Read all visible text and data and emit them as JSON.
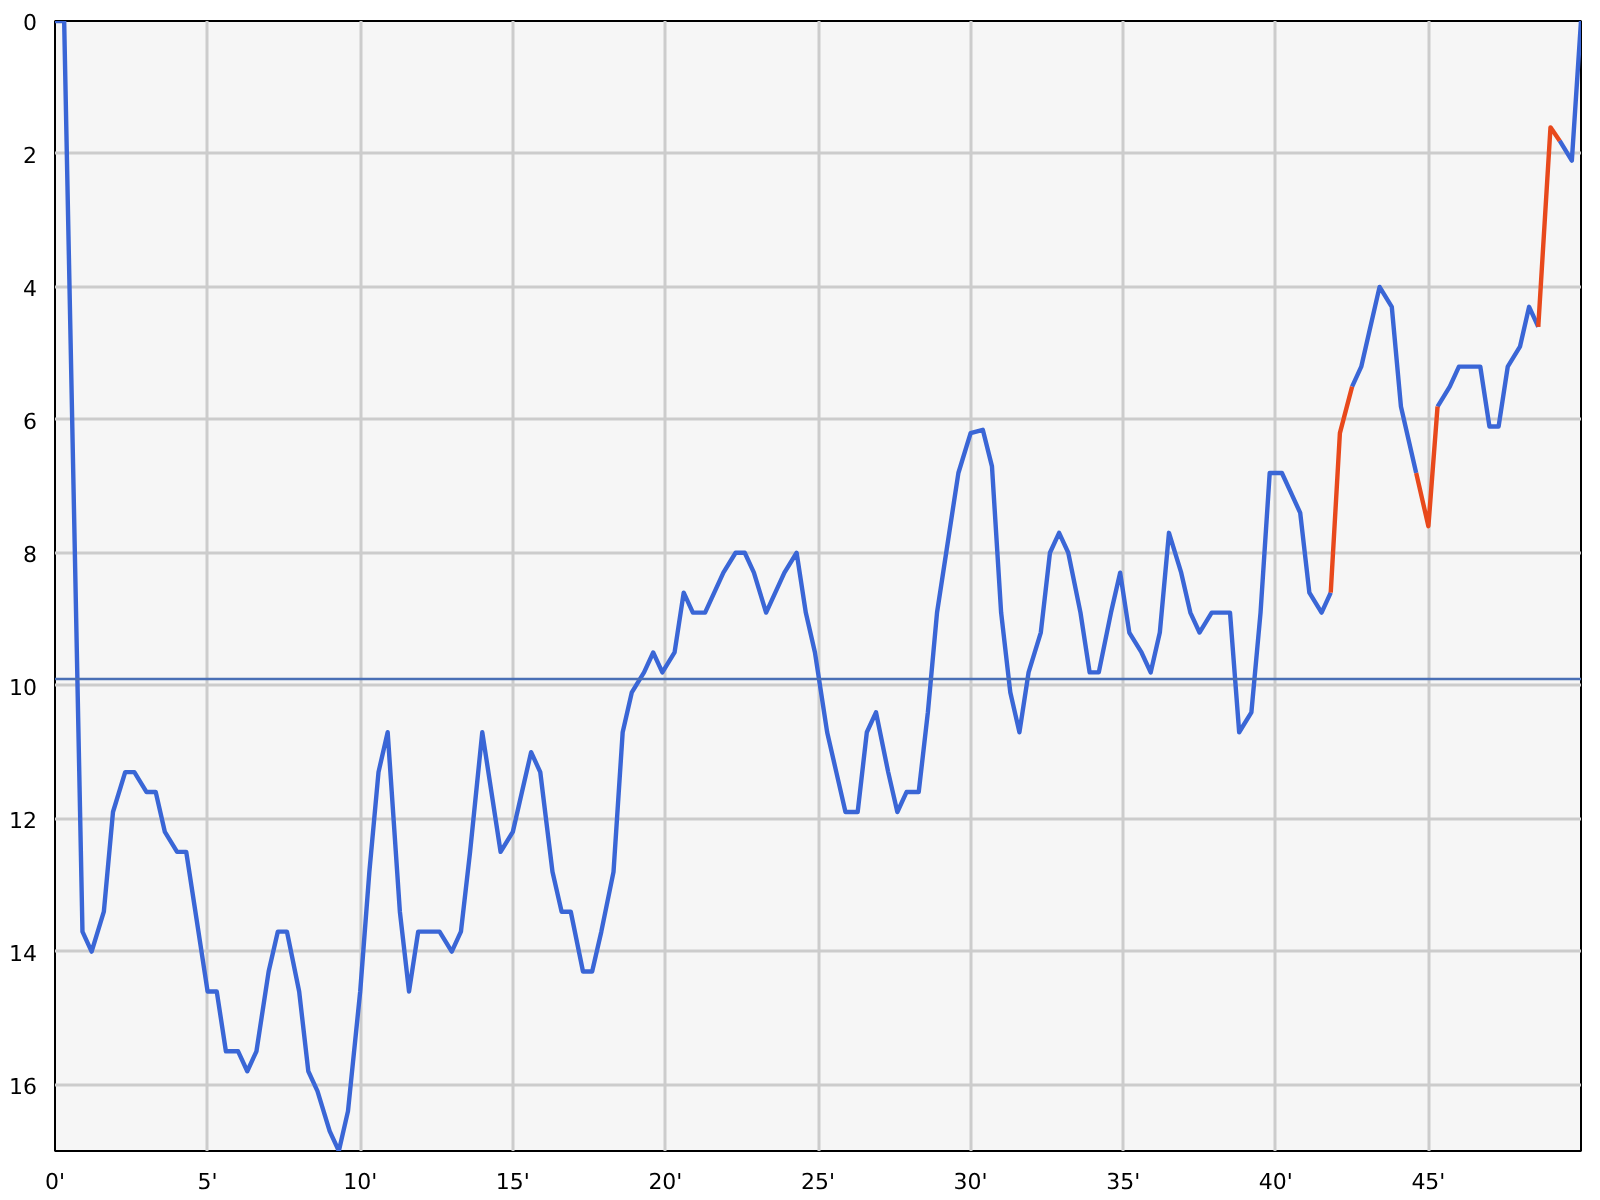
{
  "chart_data": {
    "type": "line",
    "x": [
      0,
      0.3,
      0.9,
      1.2,
      1.6,
      1.9,
      2.3,
      2.6,
      3.0,
      3.3,
      3.6,
      4.0,
      4.3,
      4.6,
      5.0,
      5.3,
      5.6,
      6.0,
      6.3,
      6.6,
      7.0,
      7.3,
      7.6,
      8.0,
      8.3,
      8.6,
      9.0,
      9.3,
      9.6,
      10.0,
      10.3,
      10.6,
      10.9,
      11.3,
      11.6,
      11.9,
      12.3,
      12.6,
      13.0,
      13.3,
      13.6,
      14.0,
      14.3,
      14.6,
      15.0,
      15.3,
      15.6,
      15.9,
      16.3,
      16.6,
      16.9,
      17.3,
      17.6,
      17.9,
      18.3,
      18.6,
      18.9,
      19.3,
      19.6,
      19.9,
      20.3,
      20.6,
      20.9,
      21.3,
      21.6,
      21.9,
      22.3,
      22.6,
      22.9,
      23.3,
      23.6,
      23.9,
      24.3,
      24.6,
      24.9,
      25.3,
      25.6,
      25.9,
      26.3,
      26.6,
      26.9,
      27.3,
      27.6,
      27.9,
      28.3,
      28.6,
      28.9,
      29.3,
      29.6,
      30.0,
      30.4,
      30.7,
      31.0,
      31.3,
      31.6,
      31.9,
      32.3,
      32.6,
      32.9,
      33.2,
      33.6,
      33.9,
      34.2,
      34.6,
      34.9,
      35.2,
      35.6,
      35.9,
      36.2,
      36.5,
      36.9,
      37.2,
      37.5,
      37.9,
      38.2,
      38.5,
      38.8,
      39.2,
      39.5,
      39.8,
      40.2,
      40.5,
      40.8,
      41.1,
      41.5,
      41.8,
      42.1,
      42.5,
      42.8,
      43.1,
      43.4,
      43.8,
      44.1,
      44.6,
      45.0,
      45.3,
      45.7,
      46.0,
      46.4,
      46.7,
      47.0,
      47.3,
      47.6,
      48.0,
      48.3,
      48.6,
      49.0,
      49.3,
      49.7,
      50.0
    ],
    "series": [
      {
        "color": "#3a66d6",
        "values": [
          0,
          0,
          13.7,
          14.0,
          13.4,
          11.9,
          11.3,
          11.3,
          11.6,
          11.6,
          12.2,
          12.5,
          12.5,
          13.4,
          14.6,
          14.6,
          15.5,
          15.5,
          15.8,
          15.5,
          14.3,
          13.7,
          13.7,
          14.6,
          15.8,
          16.1,
          16.7,
          17.0,
          16.4,
          14.6,
          12.8,
          11.3,
          10.7,
          13.4,
          14.6,
          13.7,
          13.7,
          13.7,
          14.0,
          13.7,
          12.5,
          10.7,
          11.6,
          12.5,
          12.2,
          11.6,
          11.0,
          11.3,
          12.8,
          13.4,
          13.4,
          14.3,
          14.3,
          13.7,
          12.8,
          10.7,
          10.1,
          9.8,
          9.5,
          9.8,
          9.5,
          8.6,
          8.9,
          8.9,
          8.6,
          8.3,
          8.0,
          8.0,
          8.3,
          8.9,
          8.6,
          8.3,
          8.0,
          8.9,
          9.5,
          10.7,
          11.3,
          11.9,
          11.9,
          10.7,
          10.4,
          11.3,
          11.9,
          11.6,
          11.6,
          10.4,
          8.9,
          7.7,
          6.8,
          6.2,
          6.15,
          6.7,
          8.9,
          10.1,
          10.7,
          9.8,
          9.2,
          8.0,
          7.7,
          8.0,
          8.9,
          9.8,
          9.8,
          8.9,
          8.3,
          9.2,
          9.5,
          9.8,
          9.2,
          7.7,
          8.3,
          8.9,
          9.2,
          8.9,
          8.9,
          8.9,
          10.7,
          10.4,
          8.9,
          6.8,
          6.8,
          7.1,
          7.4,
          8.6,
          8.9,
          8.6,
          null,
          5.5,
          5.2,
          4.6,
          4.0,
          4.3,
          5.8,
          6.8,
          null,
          5.8,
          5.5,
          5.2,
          5.2,
          5.2,
          6.1,
          6.1,
          5.2,
          4.9,
          4.3,
          4.6,
          null,
          1.8,
          2.1,
          0
        ]
      },
      {
        "color": "#e8491c",
        "x": [
          41.8,
          42.1,
          42.5,
          43.0,
          44.6,
          45.0,
          45.3,
          46.0,
          48.6,
          49.0,
          49.3
        ],
        "values": [
          8.6,
          6.2,
          5.5,
          null,
          6.8,
          7.6,
          5.8,
          null,
          4.6,
          1.6,
          1.8
        ]
      }
    ],
    "xlim": [
      0,
      50
    ],
    "xticks": [
      {
        "value": 0,
        "label": "0'"
      },
      {
        "value": 5,
        "label": "5'"
      },
      {
        "value": 10,
        "label": "10'"
      },
      {
        "value": 15,
        "label": "15'"
      },
      {
        "value": 20,
        "label": "20'"
      },
      {
        "value": 25,
        "label": "25'"
      },
      {
        "value": 30,
        "label": "30'"
      },
      {
        "value": 35,
        "label": "35'"
      },
      {
        "value": 40,
        "label": "40'"
      },
      {
        "value": 45,
        "label": "45'"
      }
    ],
    "ylim": [
      17,
      0
    ],
    "yticks": [
      0,
      2,
      4,
      6,
      8,
      10,
      12,
      14,
      16
    ],
    "ref_lines": [
      {
        "axis": "y",
        "value": 9.9,
        "color": "#4a6fb5"
      }
    ],
    "grid": true
  }
}
